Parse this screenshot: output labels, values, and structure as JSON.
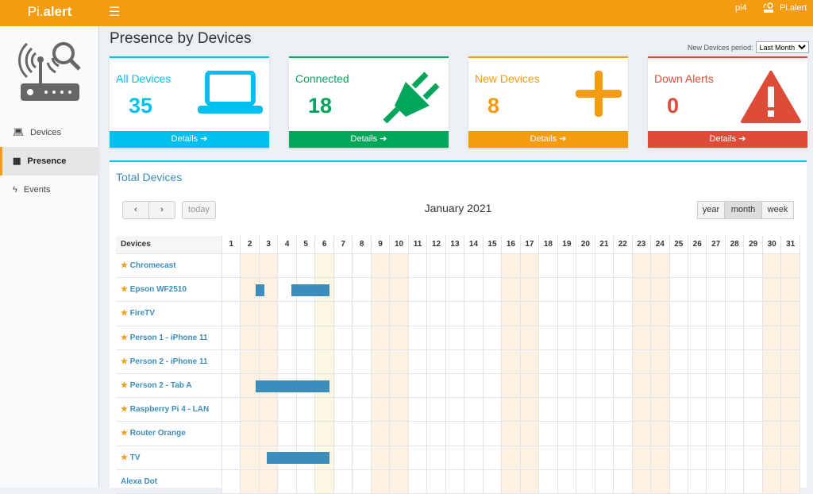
{
  "app": {
    "brand_pre": "Pi.",
    "brand_bold": "alert",
    "menu_icon": "hamburger-icon",
    "host": "pi4",
    "user": "Pi.alert"
  },
  "sidebar": {
    "items": [
      {
        "label": "Devices",
        "icon": "laptop-icon"
      },
      {
        "label": "Presence",
        "icon": "calendar-icon",
        "active": true
      },
      {
        "label": "Events",
        "icon": "bolt-icon"
      }
    ]
  },
  "page": {
    "title": "Presence by Devices",
    "period_label": "New Devices period:",
    "period_value": "Last Month"
  },
  "cards": [
    {
      "label": "All Devices",
      "value": "35",
      "footer": "Details",
      "color": "#00c0ef",
      "icon": "laptop-icon"
    },
    {
      "label": "Connected",
      "value": "18",
      "footer": "Details",
      "color": "#00a65a",
      "icon": "plug-icon"
    },
    {
      "label": "New Devices",
      "value": "8",
      "footer": "Details",
      "color": "#f39c12",
      "icon": "plus-icon"
    },
    {
      "label": "Down Alerts",
      "value": "0",
      "footer": "Details",
      "color": "#dd4b39",
      "icon": "warning-icon"
    }
  ],
  "calendar": {
    "panel_title": "Total Devices",
    "month": "January 2021",
    "prev": "‹",
    "next": "›",
    "today": "today",
    "views": [
      "year",
      "month",
      "week"
    ],
    "active_view": "month",
    "devices_header": "Devices",
    "days": [
      "1",
      "2",
      "3",
      "4",
      "5",
      "6",
      "7",
      "8",
      "9",
      "10",
      "11",
      "12",
      "13",
      "14",
      "15",
      "16",
      "17",
      "18",
      "19",
      "20",
      "21",
      "22",
      "23",
      "24",
      "25",
      "26",
      "27",
      "28",
      "29",
      "30",
      "31"
    ],
    "weekend_days": [
      2,
      3,
      9,
      10,
      16,
      17,
      23,
      24,
      30,
      31
    ],
    "today_day": 6,
    "devices": [
      {
        "name": "Chromecast",
        "favorite": true,
        "sessions": []
      },
      {
        "name": "Epson WF2510",
        "favorite": true,
        "sessions": [
          [
            2.8,
            3.25
          ],
          [
            4.7,
            6.75
          ]
        ]
      },
      {
        "name": "FireTV",
        "favorite": true,
        "sessions": []
      },
      {
        "name": "Person 1 - iPhone 11",
        "favorite": true,
        "sessions": []
      },
      {
        "name": "Person 2 - iPhone 11",
        "favorite": true,
        "sessions": []
      },
      {
        "name": "Person 2 - Tab A",
        "favorite": true,
        "sessions": [
          [
            2.8,
            6.75
          ]
        ]
      },
      {
        "name": "Raspberry Pi 4 - LAN",
        "favorite": true,
        "sessions": []
      },
      {
        "name": "Router Orange",
        "favorite": true,
        "sessions": []
      },
      {
        "name": "TV",
        "favorite": true,
        "sessions": [
          [
            3.4,
            6.75
          ]
        ]
      },
      {
        "name": "Alexa Dot",
        "favorite": false,
        "sessions": []
      }
    ]
  }
}
